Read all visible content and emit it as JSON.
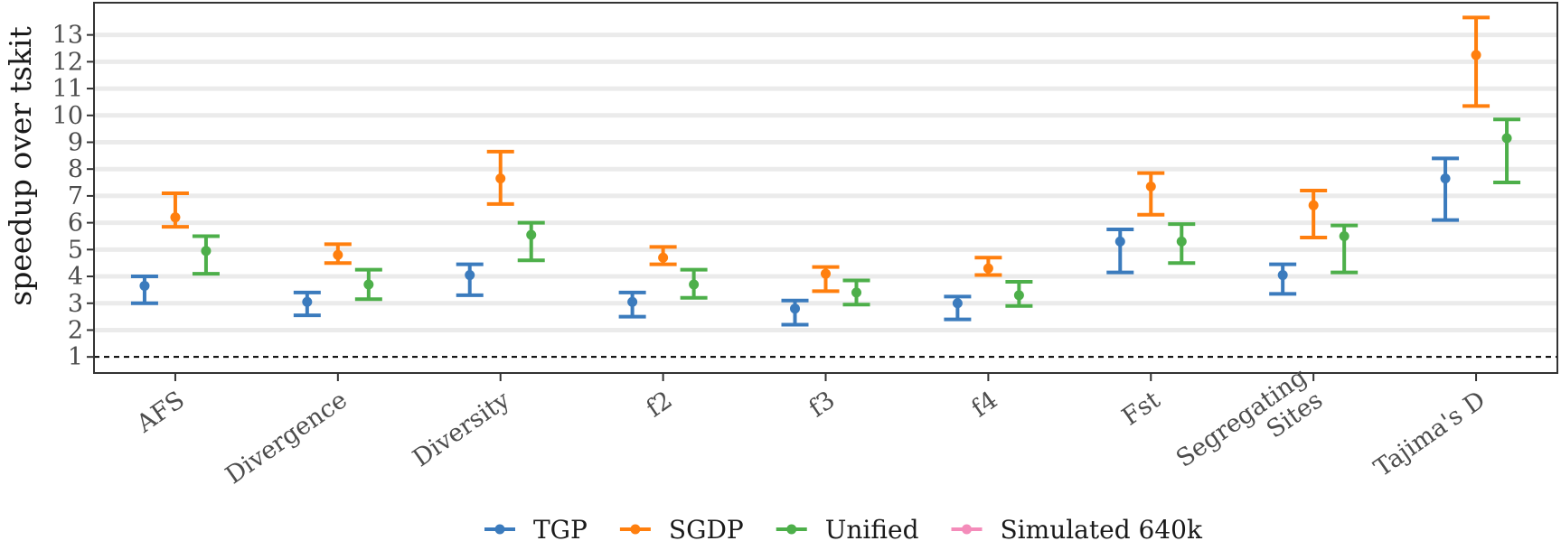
{
  "chart_data": {
    "type": "errorbar",
    "ylabel": "speedup over tskit",
    "xlabel": "",
    "ylim": [
      0.4,
      14.2
    ],
    "yticks": [
      1,
      2,
      3,
      4,
      5,
      6,
      7,
      8,
      9,
      10,
      11,
      12,
      13
    ],
    "reference_line": {
      "y": 1,
      "style": "dashed"
    },
    "categories": [
      "AFS",
      "Divergence",
      "Diversity",
      "f2",
      "f3",
      "f4",
      "Fst",
      "Segregating Sites",
      "Tajima's D"
    ],
    "category_lines": [
      [
        "AFS"
      ],
      [
        "Divergence"
      ],
      [
        "Diversity"
      ],
      [
        "f2"
      ],
      [
        "f3"
      ],
      [
        "f4"
      ],
      [
        "Fst"
      ],
      [
        "Segregating",
        "Sites"
      ],
      [
        "Tajima's D"
      ]
    ],
    "legend": {
      "position": "bottom",
      "entries": [
        "TGP",
        "SGDP",
        "Unified",
        "Simulated 640k"
      ]
    },
    "series": [
      {
        "name": "TGP",
        "color": "#3b7bbd",
        "points": [
          {
            "y": 3.65,
            "low": 3.0,
            "high": 4.0
          },
          {
            "y": 3.05,
            "low": 2.55,
            "high": 3.4
          },
          {
            "y": 4.05,
            "low": 3.3,
            "high": 4.45
          },
          {
            "y": 3.05,
            "low": 2.5,
            "high": 3.4
          },
          {
            "y": 2.8,
            "low": 2.2,
            "high": 3.1
          },
          {
            "y": 3.0,
            "low": 2.4,
            "high": 3.25
          },
          {
            "y": 5.3,
            "low": 4.15,
            "high": 5.75
          },
          {
            "y": 4.05,
            "low": 3.35,
            "high": 4.45
          },
          {
            "y": 7.65,
            "low": 6.1,
            "high": 8.4
          }
        ]
      },
      {
        "name": "SGDP",
        "color": "#ff7f0e",
        "points": [
          {
            "y": 6.2,
            "low": 5.85,
            "high": 7.1
          },
          {
            "y": 4.8,
            "low": 4.5,
            "high": 5.2
          },
          {
            "y": 7.65,
            "low": 6.7,
            "high": 8.65
          },
          {
            "y": 4.7,
            "low": 4.45,
            "high": 5.1
          },
          {
            "y": 4.1,
            "low": 3.45,
            "high": 4.35
          },
          {
            "y": 4.3,
            "low": 4.05,
            "high": 4.7
          },
          {
            "y": 7.35,
            "low": 6.3,
            "high": 7.85
          },
          {
            "y": 6.65,
            "low": 5.45,
            "high": 7.2
          },
          {
            "y": 12.25,
            "low": 10.35,
            "high": 13.65
          }
        ]
      },
      {
        "name": "Unified",
        "color": "#4daf4a",
        "points": [
          {
            "y": 4.95,
            "low": 4.1,
            "high": 5.5
          },
          {
            "y": 3.7,
            "low": 3.15,
            "high": 4.25
          },
          {
            "y": 5.55,
            "low": 4.6,
            "high": 6.0
          },
          {
            "y": 3.7,
            "low": 3.2,
            "high": 4.25
          },
          {
            "y": 3.4,
            "low": 2.95,
            "high": 3.85
          },
          {
            "y": 3.3,
            "low": 2.9,
            "high": 3.8
          },
          {
            "y": 5.3,
            "low": 4.5,
            "high": 5.95
          },
          {
            "y": 5.5,
            "low": 4.15,
            "high": 5.9
          },
          {
            "y": 9.15,
            "low": 7.5,
            "high": 9.85
          }
        ]
      },
      {
        "name": "Simulated 640k",
        "color": "#f48cba",
        "points": []
      }
    ]
  }
}
